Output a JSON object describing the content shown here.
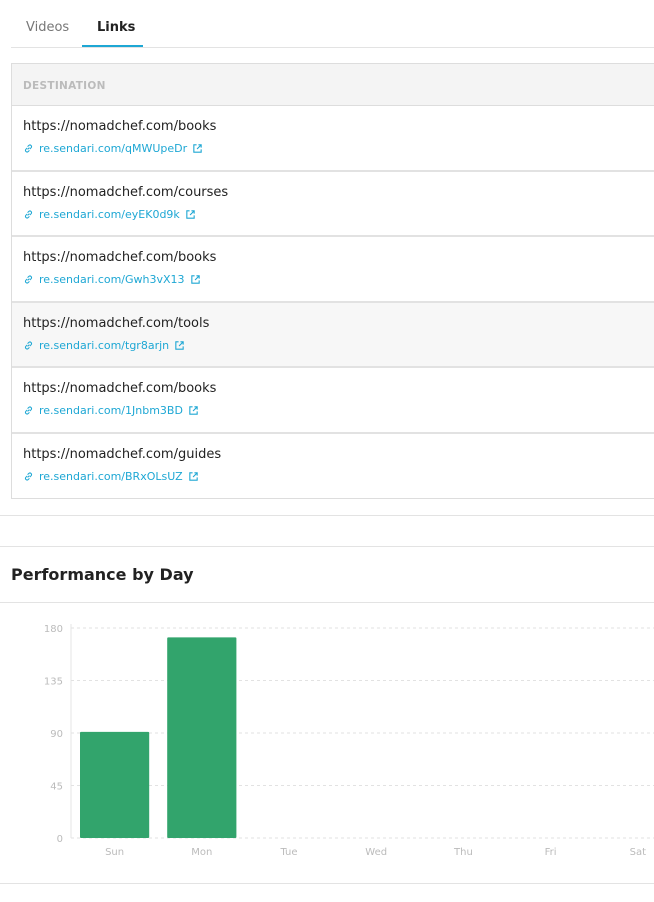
{
  "tabs": [
    {
      "label": "Videos",
      "active": false
    },
    {
      "label": "Links",
      "active": true
    }
  ],
  "table": {
    "header": "DESTINATION",
    "rows": [
      {
        "destination": "https://nomadchef.com/books",
        "short": "re.sendari.com/qMWUpeDr"
      },
      {
        "destination": "https://nomadchef.com/courses",
        "short": "re.sendari.com/eyEK0d9k"
      },
      {
        "destination": "https://nomadchef.com/books",
        "short": "re.sendari.com/Gwh3vX13"
      },
      {
        "destination": "https://nomadchef.com/tools",
        "short": "re.sendari.com/tgr8arjn"
      },
      {
        "destination": "https://nomadchef.com/books",
        "short": "re.sendari.com/1Jnbm3BD"
      },
      {
        "destination": "https://nomadchef.com/guides",
        "short": "re.sendari.com/BRxOLsUZ"
      }
    ]
  },
  "section_title": "Performance by Day",
  "colors": {
    "accent": "#1ea7d4",
    "bar": "#32a46c"
  },
  "chart_data": {
    "type": "bar",
    "categories": [
      "Sun",
      "Mon",
      "Tue",
      "Wed",
      "Thu",
      "Fri",
      "Sat"
    ],
    "values": [
      91,
      172,
      0,
      0,
      0,
      0,
      0
    ],
    "yticks": [
      0,
      45,
      90,
      135,
      180
    ],
    "ylim": [
      0,
      180
    ],
    "grid": true
  }
}
